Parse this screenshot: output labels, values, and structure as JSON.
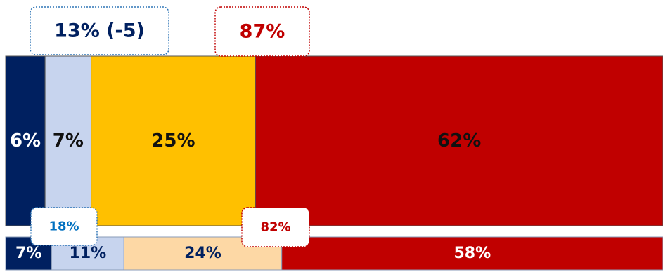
{
  "chart_data": {
    "type": "bar",
    "orientation": "horizontal",
    "stacked": true,
    "xlim": [
      0,
      100
    ],
    "bars": [
      {
        "values": [
          6,
          7,
          25,
          62
        ],
        "value_labels": [
          "6%",
          "7%",
          "25%",
          "62%"
        ],
        "colors": [
          "#002060",
          "#c7d4ee",
          "#ffc000",
          "#c00000"
        ],
        "label_colors": [
          "#ffffff",
          "#111111",
          "#111111",
          "#111111"
        ],
        "callouts": [
          {
            "value": 13,
            "change": -5,
            "label": "13% (-5)",
            "color": "#002060",
            "border": "#2e75b6"
          },
          {
            "value": 87,
            "label": "87%",
            "color": "#c00000",
            "border": "#c00000"
          }
        ]
      },
      {
        "values": [
          7,
          11,
          24,
          58
        ],
        "value_labels": [
          "7%",
          "11%",
          "24%",
          "58%"
        ],
        "colors": [
          "#002060",
          "#c7d4ee",
          "#fdd8a5",
          "#c00000"
        ],
        "label_colors": [
          "#ffffff",
          "#002060",
          "#002060",
          "#ffffff"
        ],
        "callouts": [
          {
            "value": 18,
            "label": "18%",
            "color": "#0070c0",
            "border": "#2e75b6"
          },
          {
            "value": 82,
            "label": "82%",
            "color": "#c00000",
            "border": "#c00000"
          }
        ]
      }
    ]
  }
}
